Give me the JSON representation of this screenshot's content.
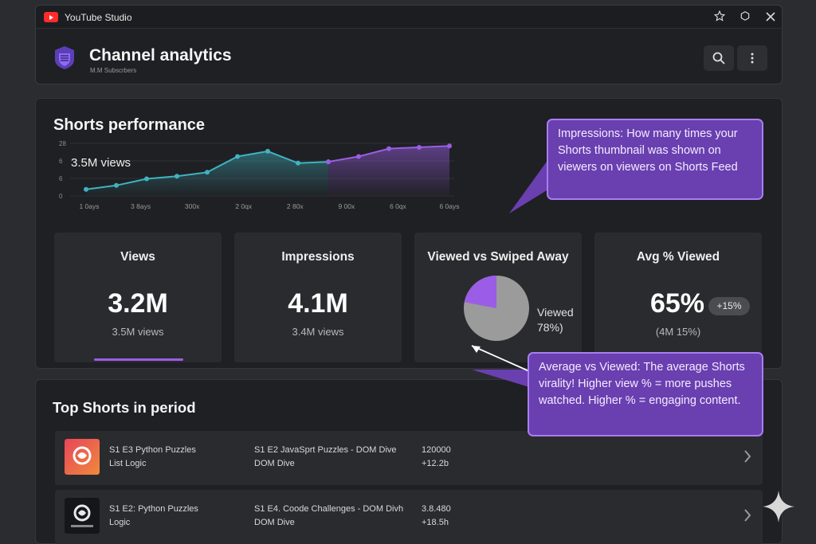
{
  "window": {
    "app_title": "YouTube Studio",
    "icons": [
      "youtube-logo",
      "star-icon",
      "extension-icon",
      "close-icon"
    ]
  },
  "header": {
    "title": "Channel analytics",
    "subtitle": "M.M Subscrbers",
    "actions": [
      "search-icon",
      "more-vert-icon"
    ]
  },
  "shorts": {
    "title": "Shorts performance",
    "colors": {
      "teal": "#3fb3c2",
      "purple": "#9b5de5"
    },
    "chart_data": {
      "type": "area",
      "y_tick_labels": [
        "28",
        "6",
        "6",
        "0"
      ],
      "x_tick_labels": [
        "1 0ays",
        "3 8ays",
        "300x",
        "2 0qx",
        "2 80x",
        "9 00x",
        "6 0qx",
        "6 0ays"
      ],
      "annotation": "3.5M views",
      "series": [
        {
          "values": [
            2.5,
            4,
            6.5,
            7.5,
            9,
            15,
            17,
            12.5,
            13
          ]
        },
        {
          "values": [
            13,
            15,
            18,
            18.5,
            19
          ]
        }
      ]
    },
    "callout_impressions": "Impressions: How many times your Shorts thumbnail was shown on viewers on viewers on Shorts Feed",
    "callout_average": "Average vs Viewed: The average Shorts virality! Higher view % = more pushes watched. Higher % = engaging content."
  },
  "cards": [
    {
      "title": "Views",
      "value": "3.2M",
      "sub": "3.5M views"
    },
    {
      "title": "Impressions",
      "value": "4.1M",
      "sub": "3.4M views"
    },
    {
      "title": "Viewed vs Swiped Away",
      "pie_label_1": "Viewed",
      "pie_label_2": "78%)",
      "viewed_percent": 78
    },
    {
      "title": "Avg % Viewed",
      "value": "65%",
      "badge": "+15%",
      "sub": "(4M 15%)"
    }
  ],
  "top_shorts": {
    "title": "Top Shorts in period",
    "rows": [
      {
        "title_1": "S1 E3 Python Puzzles",
        "title_2": "List Logic",
        "desc_1": "S1 E2 JavaSprt Puzzles - DOM Dive",
        "desc_2": "DOM Dive",
        "stat_1": "120000",
        "stat_2": "+12.2b"
      },
      {
        "title_1": "S1 E2: Python Puzzles",
        "title_2": "Logic",
        "desc_1": "S1 E4. Coode Challenges - DOM Divh",
        "desc_2": "DOM Dive",
        "stat_1": "3.8.480",
        "stat_2": "+18.5h"
      }
    ]
  }
}
